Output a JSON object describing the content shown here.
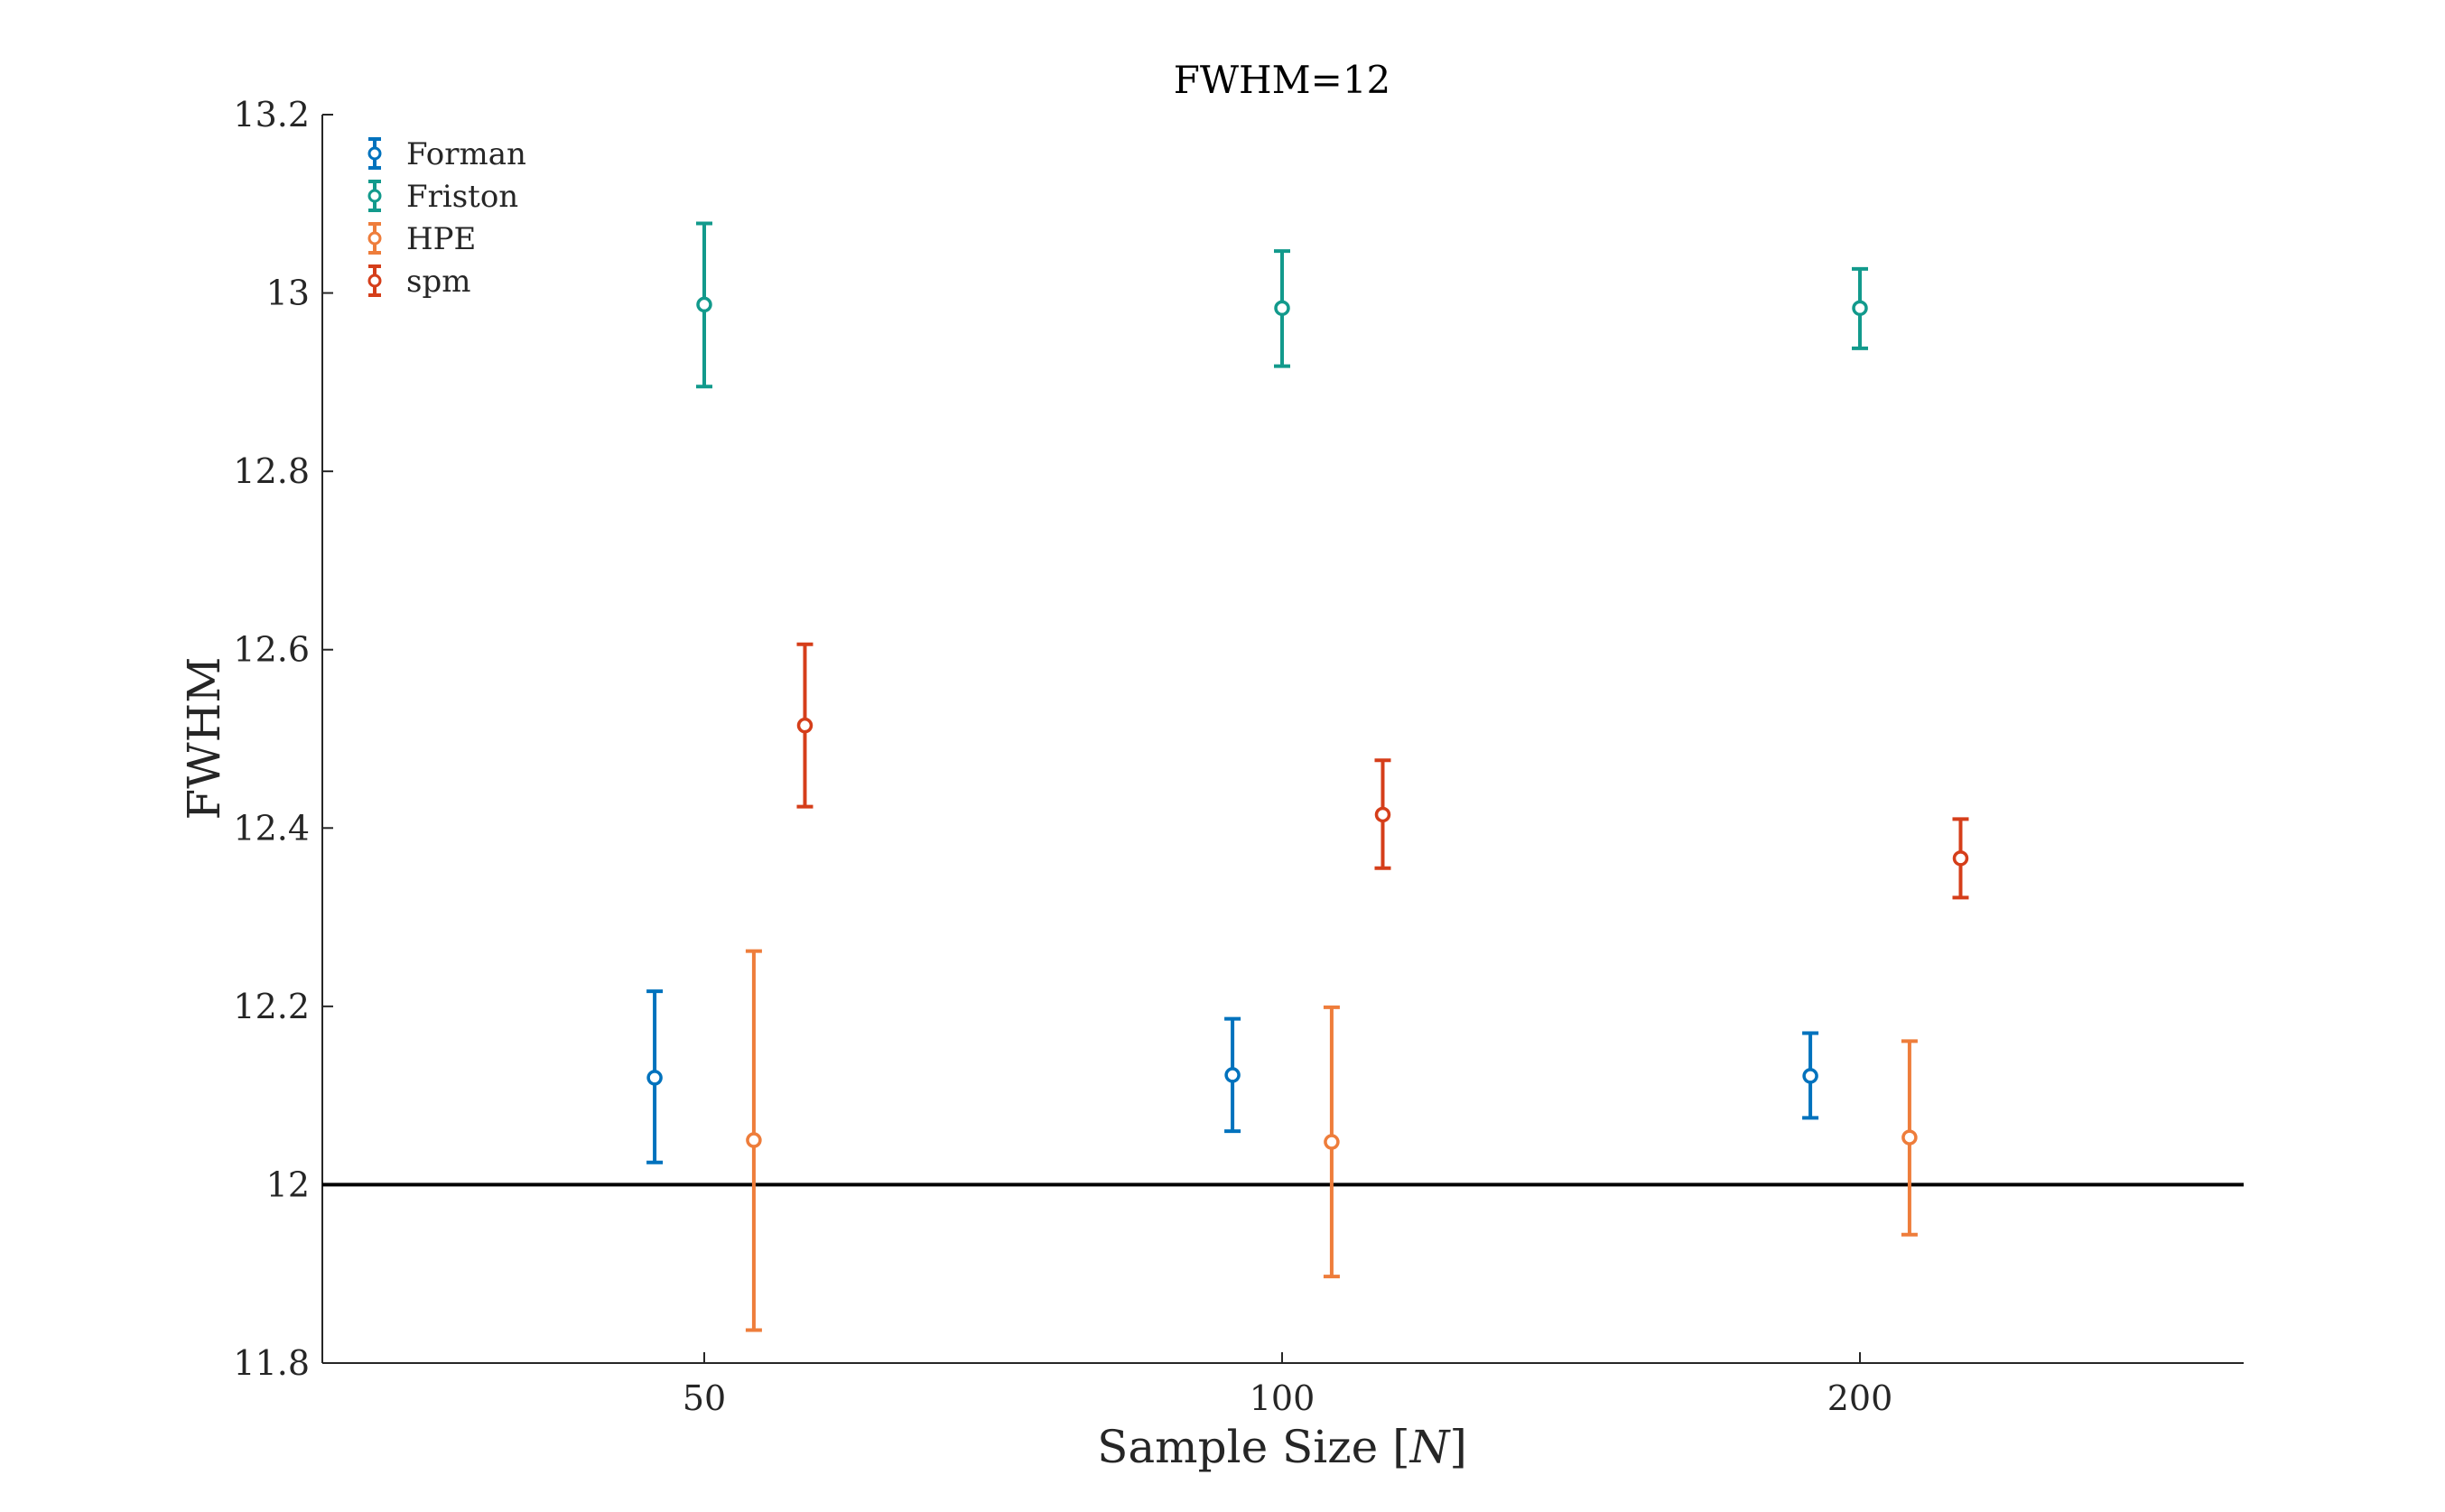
{
  "chart_data": {
    "type": "scatter",
    "title": "FWHM=12",
    "xlabel": "Sample Size [",
    "xlabel_var": "N",
    "xlabel_close": "]",
    "ylabel": "FWHM",
    "categories": [
      "50",
      "100",
      "200"
    ],
    "ylim": [
      11.8,
      13.2
    ],
    "yticks": [
      "11.8",
      "12",
      "12.2",
      "12.4",
      "12.6",
      "12.8",
      "13",
      "13.2"
    ],
    "yticks_values": [
      11.8,
      12.0,
      12.2,
      12.4,
      12.6,
      12.8,
      13.0,
      13.2
    ],
    "reference_line": 12,
    "legend_position": "top-left",
    "grid": false,
    "series": [
      {
        "name": "Forman",
        "color": "#0072BD",
        "offset": -0.33,
        "values": [
          12.12,
          12.123,
          12.122
        ],
        "lower": [
          12.025,
          12.06,
          12.075
        ],
        "upper": [
          12.217,
          12.186,
          12.17
        ]
      },
      {
        "name": "Friston",
        "color": "#129A8C",
        "offset": 0,
        "values": [
          12.987,
          12.983,
          12.983
        ],
        "lower": [
          12.895,
          12.918,
          12.938
        ],
        "upper": [
          13.078,
          13.047,
          13.027
        ]
      },
      {
        "name": "HPE",
        "color": "#EE7D3B",
        "offset": 0.33,
        "values": [
          12.05,
          12.048,
          12.053
        ],
        "lower": [
          11.837,
          11.897,
          11.944
        ],
        "upper": [
          12.262,
          12.199,
          12.161
        ]
      },
      {
        "name": "spm",
        "color": "#D53E1A",
        "offset": 0.67,
        "values": [
          12.515,
          12.415,
          12.366
        ],
        "lower": [
          12.424,
          12.355,
          12.322
        ],
        "upper": [
          12.606,
          12.476,
          12.41
        ]
      }
    ]
  }
}
